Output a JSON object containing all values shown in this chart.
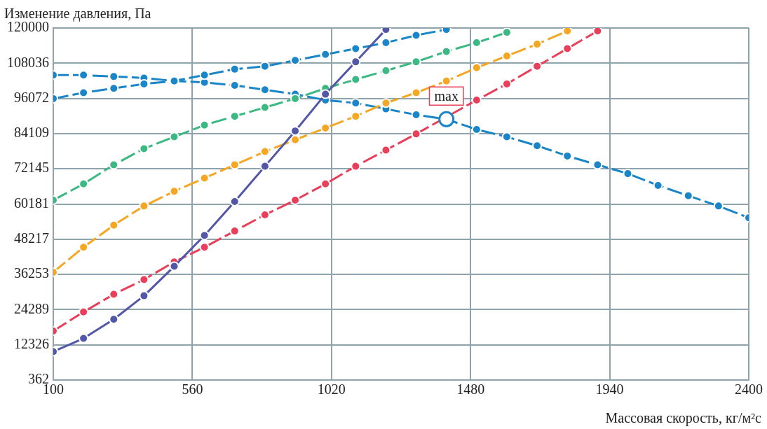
{
  "chart_data": {
    "type": "line",
    "xlabel": "Массовая скорость, кг/м²с",
    "ylabel": "Изменение давления, Па",
    "x": [
      100,
      200,
      300,
      400,
      500,
      600,
      700,
      800,
      900,
      1000,
      1100,
      1200,
      1300,
      1400,
      1500,
      1600,
      1700,
      1800,
      1900,
      2000,
      2100,
      2200,
      2300,
      2400
    ],
    "xlim": [
      100,
      2400
    ],
    "xticks": [
      100,
      560,
      1020,
      1480,
      1940,
      2400
    ],
    "ylim": [
      362,
      120000
    ],
    "yticks": [
      362,
      12326,
      24289,
      36253,
      48217,
      60181,
      72145,
      84109,
      96072,
      108036,
      120000
    ],
    "grid": true,
    "legend": false,
    "marker": "circle",
    "series": [
      {
        "color": "#1a86c8",
        "line_style": "dashed",
        "values": [
          104000,
          104000,
          103500,
          103000,
          102000,
          101500,
          100500,
          99000,
          97500,
          95500,
          94500,
          92500,
          90500,
          89000,
          85500,
          83000,
          80000,
          76500,
          73500,
          70500,
          66500,
          63000,
          59500,
          55500
        ]
      },
      {
        "color": "#1a86c8",
        "line_style": "dashed",
        "values": [
          96000,
          98000,
          99500,
          101000,
          102000,
          104000,
          106000,
          107000,
          109000,
          111000,
          113000,
          115000,
          117500,
          119500,
          null,
          null,
          null,
          null,
          null,
          null,
          null,
          null,
          null,
          null
        ]
      },
      {
        "color": "#3cb882",
        "line_style": "dashed",
        "values": [
          61500,
          67000,
          73500,
          79000,
          83000,
          87000,
          90000,
          93000,
          96000,
          99500,
          102500,
          105500,
          108500,
          112000,
          115000,
          118500,
          null,
          null,
          null,
          null,
          null,
          null,
          null,
          null
        ]
      },
      {
        "color": "#f5a623",
        "line_style": "dashed",
        "values": [
          37000,
          45500,
          53000,
          59500,
          64500,
          69000,
          73500,
          78000,
          82000,
          86000,
          90000,
          94500,
          98000,
          102000,
          106500,
          110500,
          114500,
          119000,
          null,
          null,
          null,
          null,
          null,
          null
        ]
      },
      {
        "color": "#e8405a",
        "line_style": "dashed",
        "values": [
          17000,
          23500,
          29500,
          34500,
          40500,
          45500,
          51000,
          56500,
          61500,
          67000,
          73000,
          78500,
          84000,
          null,
          95500,
          101000,
          107000,
          113000,
          119000,
          null,
          null,
          null,
          null,
          null
        ]
      },
      {
        "color": "#5257a8",
        "line_style": "solid",
        "values": [
          10000,
          14500,
          21000,
          29000,
          39000,
          49500,
          61000,
          73000,
          85000,
          97500,
          108500,
          119500,
          null,
          null,
          null,
          null,
          null,
          null,
          null,
          null,
          null,
          null,
          null,
          null
        ]
      }
    ],
    "annotations": [
      {
        "text": "max",
        "x": 1400,
        "y": 89000
      }
    ]
  }
}
